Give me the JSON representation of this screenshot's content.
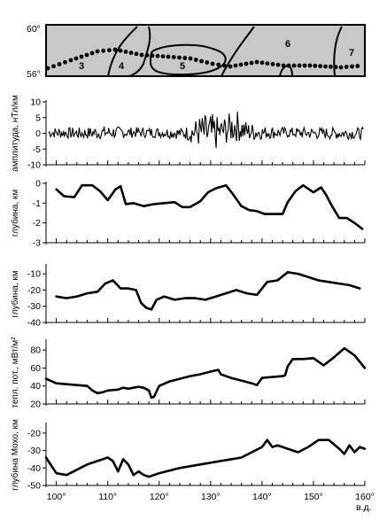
{
  "x_axis": {
    "ticks": [
      "100°",
      "110°",
      "120°",
      "130°",
      "140°",
      "150°",
      "160°"
    ],
    "tick_values": [
      100,
      110,
      120,
      130,
      140,
      150,
      160
    ],
    "range": [
      98,
      160
    ],
    "unit_label": "в.д."
  },
  "map_panel": {
    "lat_labels": [
      "60°",
      "56°"
    ],
    "zone_labels": [
      "3",
      "4",
      "5",
      "6",
      "7"
    ],
    "fill_color": "#c8c8c8",
    "dot_color": "#000000"
  },
  "chart_data": [
    {
      "type": "line",
      "ylabel": "амплитуда, нТл/км",
      "yticks": [
        "10",
        "5",
        "0",
        "-5",
        "-10"
      ],
      "ylim": [
        -10,
        10
      ],
      "note": "dense noisy anomaly signal, mostly within ±2, spikes near 129–137°",
      "envelope": {
        "x": [
          98,
          105,
          110,
          115,
          120,
          125,
          128,
          130,
          132,
          135,
          137,
          140,
          145,
          150,
          155,
          160
        ],
        "max": [
          2,
          2,
          2.5,
          2,
          2,
          2,
          6,
          7,
          5,
          8,
          4,
          2.5,
          2,
          2,
          2,
          2
        ],
        "min": [
          -1.5,
          -2,
          -2,
          -1.5,
          -1.5,
          -2,
          -5,
          -8,
          -4,
          -3,
          -3,
          -2,
          -1.5,
          -2,
          -2,
          -2
        ]
      }
    },
    {
      "type": "line",
      "ylabel": "глубина, км",
      "yticks": [
        "0",
        "-1",
        "-2",
        "-3"
      ],
      "ylim": [
        -3,
        0
      ],
      "x": [
        100,
        101.5,
        103.5,
        105,
        107,
        108.5,
        110,
        111.5,
        112.5,
        113.5,
        115,
        117,
        119,
        121,
        123,
        124.5,
        126,
        128,
        129.5,
        131,
        133,
        134.5,
        136,
        137.5,
        139,
        140.5,
        142,
        144,
        145,
        146.5,
        148,
        150,
        151.5,
        152.5,
        153.5,
        155,
        156.5,
        158,
        159.5
      ],
      "y": [
        -0.3,
        -0.65,
        -0.7,
        -0.1,
        -0.1,
        -0.4,
        -0.85,
        -0.3,
        -0.15,
        -1.05,
        -1.0,
        -1.15,
        -1.05,
        -1.0,
        -0.95,
        -1.2,
        -1.2,
        -0.9,
        -0.45,
        -0.25,
        -0.1,
        -0.6,
        -1.15,
        -1.35,
        -1.4,
        -1.55,
        -1.55,
        -1.55,
        -0.95,
        -0.4,
        -0.1,
        -0.45,
        -0.2,
        -0.6,
        -1.1,
        -1.75,
        -1.75,
        -2.0,
        -2.3
      ]
    },
    {
      "type": "line",
      "ylabel": "глубина, км",
      "yticks": [
        "-10",
        "-20",
        "-30",
        "-40"
      ],
      "ylim": [
        -40,
        -5
      ],
      "x": [
        100,
        102,
        104,
        106,
        108,
        109.5,
        111,
        112.5,
        114,
        115.5,
        116.5,
        117.5,
        118.5,
        119.5,
        121,
        123,
        125,
        127,
        129,
        131,
        133,
        135,
        137,
        139,
        141,
        143,
        145,
        147,
        149,
        151,
        153,
        155,
        157,
        159
      ],
      "y": [
        -24,
        -25,
        -24,
        -22,
        -21,
        -16,
        -14,
        -19,
        -19,
        -20,
        -28,
        -31,
        -32,
        -26,
        -24,
        -26,
        -25,
        -25,
        -26,
        -24,
        -22,
        -20,
        -22,
        -23,
        -15,
        -14,
        -9,
        -10,
        -12,
        -14,
        -15,
        -16,
        -17,
        -19
      ]
    },
    {
      "type": "line",
      "ylabel": "тепл. пот., мВт/м²",
      "yticks": [
        "80",
        "60",
        "40",
        "20"
      ],
      "ylim": [
        20,
        90
      ],
      "x": [
        98,
        100,
        102,
        104,
        106,
        107,
        108,
        109,
        110,
        112,
        113,
        114,
        115,
        116,
        117,
        118,
        118.5,
        119,
        120,
        122,
        124,
        126,
        128,
        130,
        131.5,
        132,
        134,
        136,
        138,
        139,
        140,
        142,
        144,
        144.5,
        145,
        146,
        148,
        150,
        152,
        154,
        156,
        158,
        160
      ],
      "y": [
        48,
        43,
        42,
        41,
        40,
        35,
        32,
        33,
        35,
        36,
        38,
        37,
        38,
        39,
        38,
        35,
        27,
        28,
        40,
        45,
        48,
        51,
        53,
        56,
        58,
        53,
        49,
        46,
        43,
        41,
        49,
        50,
        51,
        52,
        62,
        70,
        70,
        71,
        63,
        72,
        82,
        74,
        60
      ]
    },
    {
      "type": "line",
      "ylabel": "глубина Мохо, км",
      "yticks": [
        "-20",
        "-30",
        "-40",
        "-50"
      ],
      "ylim": [
        -50,
        -15
      ],
      "x": [
        98,
        100,
        102,
        104,
        106,
        108,
        110,
        111,
        112,
        113,
        114,
        115,
        116,
        117,
        118,
        120,
        124,
        128,
        132,
        136,
        138,
        140,
        141,
        142,
        143,
        145,
        147,
        149,
        151,
        153,
        155,
        156,
        157,
        158,
        159,
        160
      ],
      "y": [
        -34,
        -43,
        -44,
        -41,
        -38,
        -36,
        -34,
        -36,
        -42,
        -35,
        -38,
        -44,
        -42,
        -44,
        -45,
        -43,
        -40,
        -38,
        -36,
        -34,
        -31,
        -28,
        -24,
        -28,
        -27,
        -29,
        -31,
        -28,
        -24,
        -24,
        -29,
        -32,
        -27,
        -31,
        -28,
        -29
      ]
    }
  ]
}
